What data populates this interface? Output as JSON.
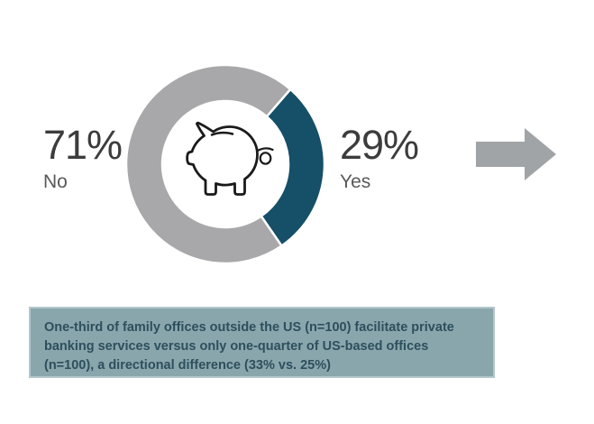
{
  "chart_data": {
    "type": "pie",
    "subtype": "donut",
    "title": "",
    "slices": [
      {
        "label": "Yes",
        "value": 29,
        "value_label": "29%",
        "color": "#154f68"
      },
      {
        "label": "No",
        "value": 71,
        "value_label": "71%",
        "color": "#a8a8aa"
      }
    ],
    "unit": "%",
    "start_angle_deg": 41,
    "direction": "clockwise",
    "outer_radius_px": 110,
    "inner_radius_px": 70,
    "slice_separator_color": "#ffffff",
    "center_icon": "piggy-bank",
    "legend_position": "sides"
  },
  "labels": {
    "no": {
      "value": "71%",
      "name": "No"
    },
    "yes": {
      "value": "29%",
      "name": "Yes"
    }
  },
  "callout": {
    "lines": [
      "One-third of family offices outside the US (n=100) facilitate private",
      "banking services versus only one-quarter of US-based offices",
      "(n=100), a directional difference (33% vs. 25%)"
    ]
  },
  "icons": {
    "center": "piggy-bank-icon",
    "right": "right-arrow-icon"
  },
  "colors": {
    "background": "#ffffff",
    "yes-slice": "#154f68",
    "no-slice": "#a8a8aa",
    "arrow": "#a1a4a7",
    "callout-bg": "#8aa6ad",
    "callout-border": "#b3c6cc",
    "callout-text": "#2d4f5c",
    "pct-text": "#3c3c3c",
    "cat-text": "#595959",
    "pig-stroke": "#1a1a1a"
  }
}
